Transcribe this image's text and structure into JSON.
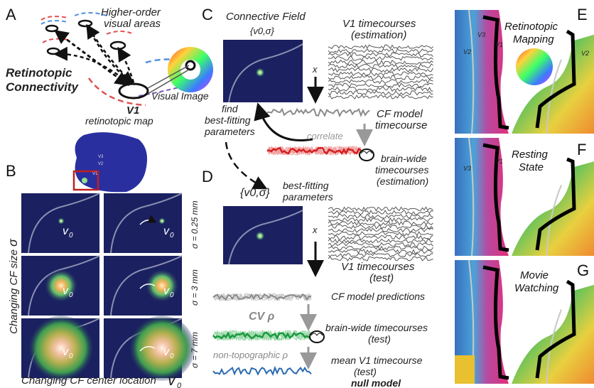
{
  "panels": {
    "A": {
      "letter": "A",
      "higher_order_line1": "Higher-order",
      "higher_order_line2": "visual areas",
      "retino_line1": "Retinotopic",
      "retino_line2": "Connectivity",
      "v1_bold": "V1",
      "v1_rest": "retinotopic map",
      "visual_image": "Visual Image"
    },
    "B": {
      "letter": "B",
      "ylabel": "Changing CF size",
      "ylabel_symbol": "σ",
      "xlabel": "Changing CF center location",
      "xlabel_symbol": "v",
      "xlabel_sub": "0",
      "sigma_rows": [
        "σ = 0.25 mm",
        "σ = 3 mm",
        "σ = 7 mm"
      ],
      "v0_label": "v",
      "v0_sub": "0",
      "brain_labels": [
        "V3",
        "V2",
        "V1"
      ]
    },
    "C": {
      "letter": "C",
      "cf_title": "Connective Field",
      "cf_params": "{v0,σ}",
      "v1_title_line1": "V1 timecourses",
      "v1_title_line2": "(estimation)",
      "x_symbol": "x",
      "find_line1": "find",
      "find_line2": "best-fitting",
      "find_line3": "parameters",
      "cf_model_line1": "CF model",
      "cf_model_line2": "timecourse",
      "correlate": "correlate",
      "brainwide_line1": "brain-wide",
      "brainwide_line2": "timecourses",
      "brainwide_line3": "(estimation)"
    },
    "D": {
      "letter": "D",
      "params": "{v0,σ}",
      "best_line1": "best-fitting",
      "best_line2": "parameters",
      "x_symbol": "x",
      "v1_test_line1": "V1 timecourses",
      "v1_test_line2": "(test)",
      "cf_predictions": "CF model predictions",
      "cv_rho": "CV ρ",
      "brainwide_test_line1": "brain-wide timecourses",
      "brainwide_test_line2": "(test)",
      "nontopo_rho": "non-topographic ρ",
      "mean_v1_line1": "mean V1 timecourse",
      "mean_v1_line2": "(test)",
      "null_model": "null model"
    },
    "E": {
      "letter": "E",
      "title_line1": "Retinotopic",
      "title_line2": "Mapping"
    },
    "F": {
      "letter": "F",
      "title_line1": "Resting",
      "title_line2": "State"
    },
    "G": {
      "letter": "G",
      "title_line1": "Movie",
      "title_line2": "Watching"
    }
  },
  "map_area_labels": [
    "V3",
    "V2",
    "V1",
    "V2",
    "V3",
    "V1"
  ],
  "colors": {
    "navy": "#1a2060",
    "cf_red": "#d42020",
    "cf_green": "#1a9a40",
    "null_blue": "#2a6ab0",
    "model_gray": "#8a8a8a",
    "arrow_gray": "#999999",
    "boundary_black": "#000000"
  }
}
